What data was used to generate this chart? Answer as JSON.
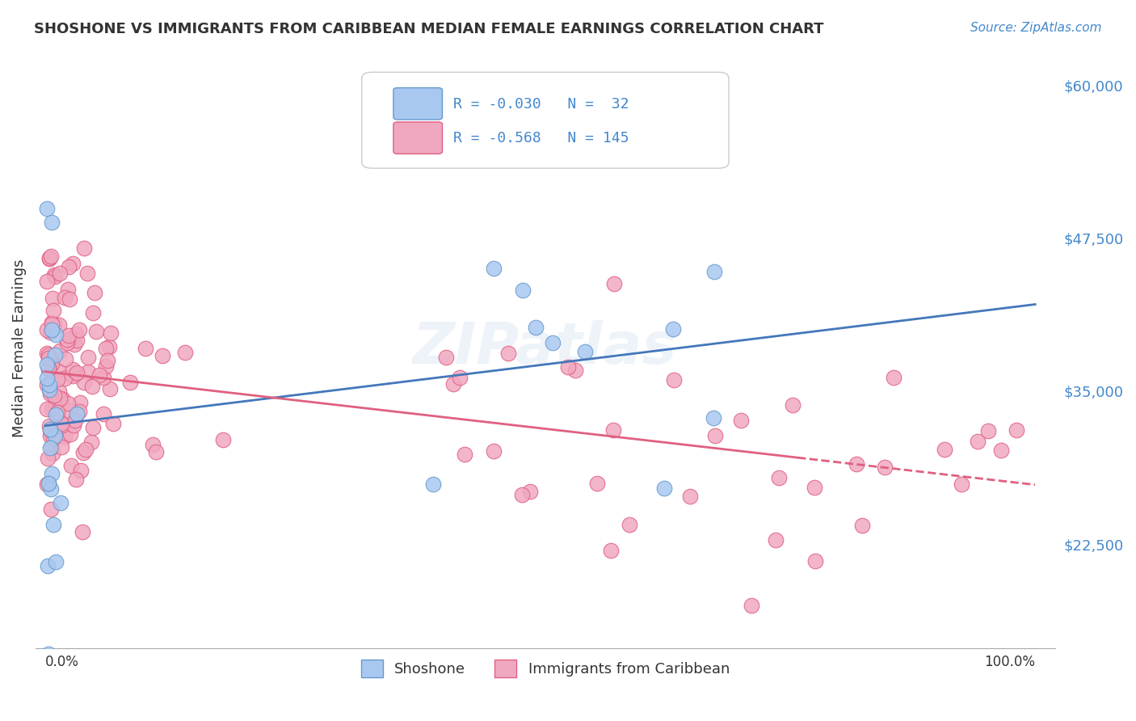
{
  "title": "SHOSHONE VS IMMIGRANTS FROM CARIBBEAN MEDIAN FEMALE EARNINGS CORRELATION CHART",
  "source": "Source: ZipAtlas.com",
  "ylabel": "Median Female Earnings",
  "yticklabels": [
    "$22,500",
    "$35,000",
    "$47,500",
    "$60,000"
  ],
  "ytick_values": [
    22500,
    35000,
    47500,
    60000
  ],
  "ylim_low": 14000,
  "ylim_high": 63000,
  "watermark": "ZIPatlas",
  "color_blue": "#a8c8f0",
  "color_pink": "#f0a8c0",
  "color_text_blue": "#4488cc",
  "line_blue": "#4477bb",
  "line_pink": "#e06080",
  "edge_blue": "#6699cc",
  "background": "#ffffff",
  "legend_r1": "R = -0.030",
  "legend_n1": "N =  32",
  "legend_r2": "R = -0.568",
  "legend_n2": "N = 145"
}
